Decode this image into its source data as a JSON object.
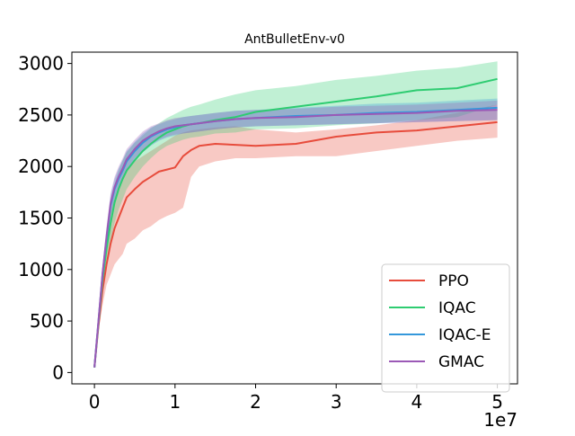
{
  "chart_data": {
    "type": "line",
    "title": "AntBulletEnv-v0",
    "xlabel": "",
    "ylabel": "",
    "x_offset_label": "1e7",
    "xlim": [
      -0.28,
      5.25
    ],
    "ylim": [
      -110,
      3110
    ],
    "x_ticks": [
      0,
      1,
      2,
      3,
      4,
      5
    ],
    "x_tick_labels": [
      "0",
      "1",
      "2",
      "3",
      "4",
      "5"
    ],
    "y_ticks": [
      0,
      500,
      1000,
      1500,
      2000,
      2500,
      3000
    ],
    "y_tick_labels": [
      "0",
      "500",
      "1000",
      "1500",
      "2000",
      "2500",
      "3000"
    ],
    "legend_position": "lower-right",
    "x": [
      0,
      0.05,
      0.1,
      0.15,
      0.2,
      0.25,
      0.3,
      0.35,
      0.4,
      0.5,
      0.6,
      0.7,
      0.8,
      0.9,
      1.0,
      1.1,
      1.2,
      1.3,
      1.5,
      1.75,
      2.0,
      2.5,
      3.0,
      3.5,
      4.0,
      4.5,
      5.0
    ],
    "series": [
      {
        "name": "PPO",
        "color": "#e74c3c",
        "mean": [
          50,
          450,
          800,
          1050,
          1250,
          1400,
          1500,
          1600,
          1700,
          1780,
          1850,
          1900,
          1950,
          1970,
          1990,
          2100,
          2160,
          2200,
          2220,
          2210,
          2200,
          2220,
          2290,
          2330,
          2350,
          2390,
          2430
        ],
        "lower": [
          50,
          400,
          650,
          850,
          950,
          1050,
          1100,
          1150,
          1250,
          1300,
          1380,
          1420,
          1480,
          1520,
          1550,
          1600,
          1900,
          2000,
          2050,
          2080,
          2080,
          2100,
          2100,
          2150,
          2200,
          2250,
          2280
        ],
        "upper": [
          50,
          500,
          950,
          1300,
          1550,
          1700,
          1800,
          1900,
          1980,
          2050,
          2100,
          2150,
          2200,
          2250,
          2300,
          2330,
          2350,
          2360,
          2380,
          2390,
          2360,
          2330,
          2360,
          2400,
          2450,
          2520,
          2600
        ]
      },
      {
        "name": "IQAC",
        "color": "#2ecc71",
        "mean": [
          50,
          480,
          900,
          1200,
          1450,
          1650,
          1780,
          1880,
          1960,
          2060,
          2150,
          2220,
          2280,
          2330,
          2360,
          2390,
          2410,
          2420,
          2450,
          2480,
          2530,
          2580,
          2630,
          2680,
          2740,
          2760,
          2850
        ],
        "lower": [
          50,
          430,
          800,
          1050,
          1280,
          1450,
          1580,
          1680,
          1780,
          1900,
          2000,
          2080,
          2150,
          2200,
          2230,
          2260,
          2280,
          2290,
          2320,
          2330,
          2360,
          2370,
          2400,
          2420,
          2450,
          2480,
          2600
        ],
        "upper": [
          50,
          530,
          1000,
          1350,
          1620,
          1830,
          1960,
          2060,
          2140,
          2230,
          2300,
          2370,
          2420,
          2470,
          2510,
          2550,
          2580,
          2600,
          2650,
          2700,
          2740,
          2780,
          2840,
          2880,
          2930,
          2960,
          3020
        ]
      },
      {
        "name": "IQAC-E",
        "color": "#3498db",
        "mean": [
          50,
          500,
          950,
          1300,
          1620,
          1780,
          1880,
          1960,
          2050,
          2150,
          2230,
          2290,
          2330,
          2360,
          2380,
          2400,
          2410,
          2420,
          2440,
          2460,
          2470,
          2490,
          2500,
          2520,
          2530,
          2550,
          2570
        ],
        "lower": [
          50,
          460,
          880,
          1200,
          1520,
          1680,
          1780,
          1860,
          1950,
          2060,
          2140,
          2200,
          2250,
          2280,
          2300,
          2320,
          2330,
          2340,
          2360,
          2380,
          2390,
          2400,
          2410,
          2420,
          2430,
          2440,
          2450
        ],
        "upper": [
          50,
          540,
          1020,
          1400,
          1720,
          1880,
          1980,
          2060,
          2150,
          2240,
          2320,
          2380,
          2410,
          2440,
          2460,
          2480,
          2490,
          2500,
          2520,
          2540,
          2550,
          2570,
          2590,
          2610,
          2620,
          2640,
          2660
        ]
      },
      {
        "name": "GMAC",
        "color": "#9b59b6",
        "mean": [
          50,
          500,
          960,
          1320,
          1640,
          1800,
          1900,
          1980,
          2070,
          2170,
          2250,
          2300,
          2340,
          2370,
          2390,
          2400,
          2410,
          2420,
          2440,
          2460,
          2470,
          2480,
          2500,
          2510,
          2520,
          2540,
          2550
        ],
        "lower": [
          50,
          460,
          880,
          1220,
          1540,
          1700,
          1800,
          1880,
          1970,
          2080,
          2160,
          2210,
          2260,
          2290,
          2310,
          2320,
          2330,
          2340,
          2360,
          2380,
          2390,
          2400,
          2410,
          2420,
          2430,
          2440,
          2450
        ],
        "upper": [
          50,
          540,
          1040,
          1420,
          1740,
          1900,
          2000,
          2080,
          2170,
          2260,
          2340,
          2390,
          2420,
          2450,
          2470,
          2480,
          2490,
          2500,
          2520,
          2540,
          2550,
          2560,
          2580,
          2590,
          2600,
          2620,
          2640
        ]
      }
    ]
  }
}
